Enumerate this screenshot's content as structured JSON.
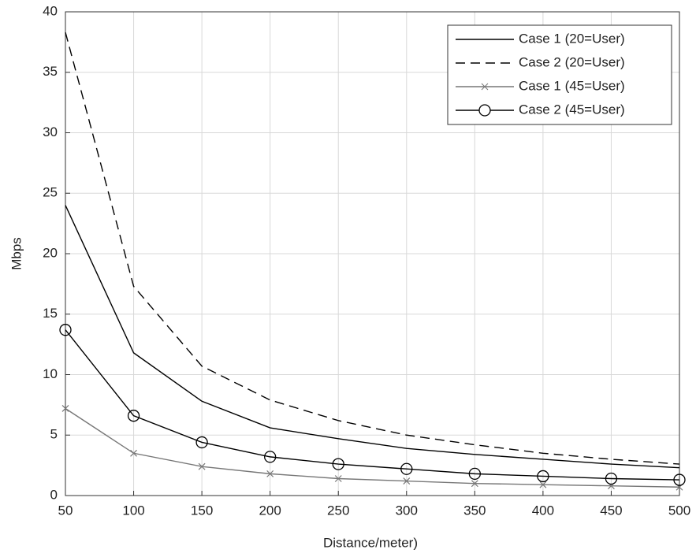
{
  "chart_data": {
    "type": "line",
    "x_label": "Distance/meter)",
    "y_label": "Mbps",
    "x": [
      50,
      100,
      150,
      200,
      250,
      300,
      350,
      400,
      450,
      500
    ],
    "series": [
      {
        "name": "Case 1 (20=User)",
        "color": "#000000",
        "dash": "solid",
        "marker": "none",
        "values": [
          24,
          11.8,
          7.8,
          5.6,
          4.7,
          3.9,
          3.4,
          3.0,
          2.6,
          2.3
        ]
      },
      {
        "name": "Case 2 (20=User)",
        "color": "#000000",
        "dash": "dashed",
        "marker": "none",
        "values": [
          38.3,
          17.3,
          10.7,
          7.9,
          6.2,
          5.0,
          4.2,
          3.5,
          3.0,
          2.6
        ]
      },
      {
        "name": "Case 1 (45=User)",
        "color": "#777777",
        "dash": "solid",
        "marker": "x",
        "values": [
          7.2,
          3.5,
          2.4,
          1.8,
          1.4,
          1.2,
          1.0,
          0.9,
          0.8,
          0.7
        ]
      },
      {
        "name": "Case 2 (45=User)",
        "color": "#000000",
        "dash": "solid",
        "marker": "o",
        "values": [
          13.7,
          6.6,
          4.4,
          3.2,
          2.6,
          2.2,
          1.8,
          1.6,
          1.4,
          1.3
        ]
      }
    ],
    "xlim": [
      50,
      500
    ],
    "xticks": [
      50,
      100,
      150,
      200,
      250,
      300,
      350,
      400,
      450,
      500
    ],
    "ylim": [
      0,
      40
    ],
    "yticks": [
      0,
      5,
      10,
      15,
      20,
      25,
      30,
      35,
      40
    ],
    "grid": true,
    "legend": "top-right"
  }
}
